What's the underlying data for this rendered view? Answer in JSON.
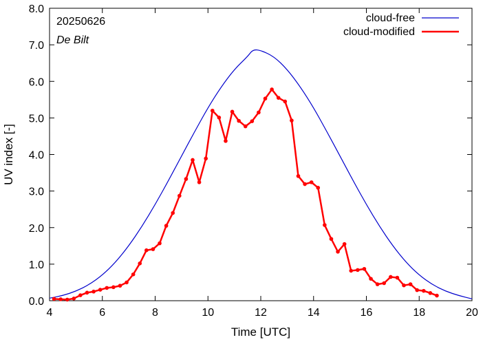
{
  "chart_data": {
    "type": "line",
    "annotations": {
      "date": "20250626",
      "location": "De Bilt"
    },
    "xlabel": "Time  [UTC]",
    "ylabel": "UV index  [-]",
    "xlim": [
      4,
      20
    ],
    "ylim": [
      0,
      8
    ],
    "x_ticks": [
      4,
      6,
      8,
      10,
      12,
      14,
      16,
      18,
      20
    ],
    "y_ticks": [
      "0.0",
      "1.0",
      "2.0",
      "3.0",
      "4.0",
      "5.0",
      "6.0",
      "7.0",
      "8.0"
    ],
    "legend_position": "top-right",
    "series": [
      {
        "name": "cloud-free",
        "color": "#0000cc",
        "x": [
          4.0,
          4.5,
          5.0,
          5.5,
          6.0,
          6.5,
          7.0,
          7.5,
          8.0,
          8.5,
          9.0,
          9.5,
          10.0,
          10.5,
          11.0,
          11.5,
          11.7,
          12.0,
          12.5,
          13.0,
          13.5,
          14.0,
          14.5,
          15.0,
          15.5,
          16.0,
          16.5,
          17.0,
          17.5,
          18.0,
          18.5,
          19.0,
          19.5,
          20.0
        ],
        "y": [
          0.07,
          0.14,
          0.26,
          0.44,
          0.7,
          1.05,
          1.5,
          2.03,
          2.63,
          3.28,
          3.96,
          4.63,
          5.28,
          5.85,
          6.33,
          6.68,
          6.87,
          6.85,
          6.68,
          6.33,
          5.85,
          5.28,
          4.63,
          3.96,
          3.28,
          2.63,
          2.03,
          1.5,
          1.05,
          0.7,
          0.44,
          0.26,
          0.14,
          0.05
        ]
      },
      {
        "name": "cloud-modified",
        "color": "#ff0000",
        "x": [
          4.17,
          4.42,
          4.67,
          4.92,
          5.17,
          5.42,
          5.67,
          5.92,
          6.17,
          6.42,
          6.67,
          6.92,
          7.17,
          7.42,
          7.67,
          7.92,
          8.17,
          8.42,
          8.67,
          8.92,
          9.17,
          9.42,
          9.67,
          9.92,
          10.17,
          10.42,
          10.67,
          10.92,
          11.17,
          11.42,
          11.67,
          11.92,
          12.17,
          12.42,
          12.67,
          12.92,
          13.17,
          13.42,
          13.67,
          13.92,
          14.17,
          14.42,
          14.67,
          14.92,
          15.17,
          15.42,
          15.67,
          15.92,
          16.17,
          16.42,
          16.67,
          16.92,
          17.17,
          17.42,
          17.67,
          17.92,
          18.17,
          18.42,
          18.67
        ],
        "y": [
          0.05,
          0.04,
          0.03,
          0.06,
          0.15,
          0.22,
          0.25,
          0.3,
          0.35,
          0.37,
          0.41,
          0.5,
          0.72,
          1.02,
          1.38,
          1.41,
          1.57,
          2.05,
          2.4,
          2.87,
          3.33,
          3.85,
          3.24,
          3.89,
          5.2,
          5.01,
          4.37,
          5.17,
          4.92,
          4.77,
          4.91,
          5.15,
          5.53,
          5.78,
          5.55,
          5.45,
          4.93,
          3.41,
          3.19,
          3.24,
          3.09,
          2.07,
          1.69,
          1.34,
          1.55,
          0.82,
          0.84,
          0.87,
          0.6,
          0.45,
          0.48,
          0.65,
          0.63,
          0.42,
          0.45,
          0.29,
          0.27,
          0.21,
          0.14
        ]
      }
    ]
  }
}
